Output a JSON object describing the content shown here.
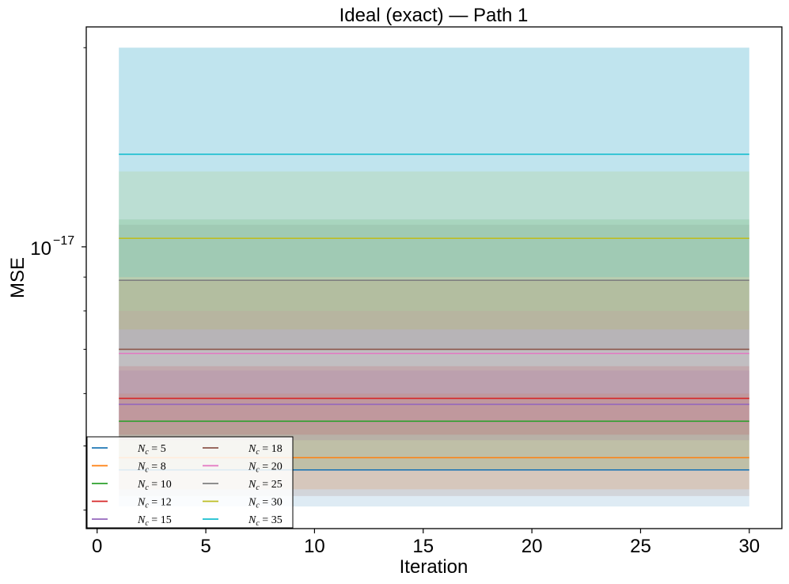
{
  "chart_data": {
    "type": "line",
    "title": "Ideal (exact) — Path 1",
    "xlabel": "Iteration",
    "ylabel": "MSE",
    "xlim": [
      -0.5,
      31.5
    ],
    "x_range": [
      1,
      30
    ],
    "xticks": [
      0,
      5,
      10,
      15,
      20,
      25,
      30
    ],
    "xtick_labels": [
      "0",
      "5",
      "10",
      "15",
      "20",
      "25",
      "30"
    ],
    "y_scale": "log",
    "ylim": [
      3.75e-18,
      2.15e-17
    ],
    "yticks": [
      1e-17
    ],
    "ytick_label": {
      "base": "10",
      "exponent": "−17"
    },
    "grid": false,
    "legend": {
      "placement": "lower-left",
      "columns": 2
    },
    "series": [
      {
        "name": "N_c = 5",
        "label_var": "N",
        "label_sub": "c",
        "label_val": "= 5",
        "color": "#1f77b4",
        "value": 4.6e-18,
        "band": [
          4.05e-18,
          2e-17
        ]
      },
      {
        "name": "N_c = 8",
        "label_var": "N",
        "label_sub": "c",
        "label_val": "= 8",
        "color": "#ff7f0e",
        "value": 4.8e-18,
        "band": [
          4.3e-18,
          6e-18
        ]
      },
      {
        "name": "N_c = 10",
        "label_var": "N",
        "label_sub": "c",
        "label_val": "= 10",
        "color": "#2ca02c",
        "value": 5.45e-18,
        "band": [
          4.6e-18,
          1.1e-17
        ]
      },
      {
        "name": "N_c = 12",
        "label_var": "N",
        "label_sub": "c",
        "label_val": "= 12",
        "color": "#d62728",
        "value": 5.9e-18,
        "band": [
          5.2e-18,
          6.6e-18
        ]
      },
      {
        "name": "N_c = 15",
        "label_var": "N",
        "label_sub": "c",
        "label_val": "= 15",
        "color": "#9467bd",
        "value": 5.78e-18,
        "band": [
          5.1e-18,
          6.5e-18
        ]
      },
      {
        "name": "N_c = 18",
        "label_var": "N",
        "label_sub": "c",
        "label_val": "= 18",
        "color": "#8c564b",
        "value": 7e-18,
        "band": [
          4.2e-18,
          8.9e-18
        ]
      },
      {
        "name": "N_c = 20",
        "label_var": "N",
        "label_sub": "c",
        "label_val": "= 20",
        "color": "#e377c2",
        "value": 6.9e-18,
        "band": [
          5.4e-18,
          8e-18
        ]
      },
      {
        "name": "N_c = 25",
        "label_var": "N",
        "label_sub": "c",
        "label_val": "= 25",
        "color": "#7f7f7f",
        "value": 8.9e-18,
        "band": [
          7e-18,
          1.08e-17
        ]
      },
      {
        "name": "N_c = 30",
        "label_var": "N",
        "label_sub": "c",
        "label_val": "= 30",
        "color": "#bcbd22",
        "value": 1.03e-17,
        "band": [
          7.5e-18,
          1.3e-17
        ]
      },
      {
        "name": "N_c = 35",
        "label_var": "N",
        "label_sub": "c",
        "label_val": "= 35",
        "color": "#17becf",
        "value": 1.38e-17,
        "band": [
          9e-18,
          2e-17
        ]
      }
    ]
  }
}
